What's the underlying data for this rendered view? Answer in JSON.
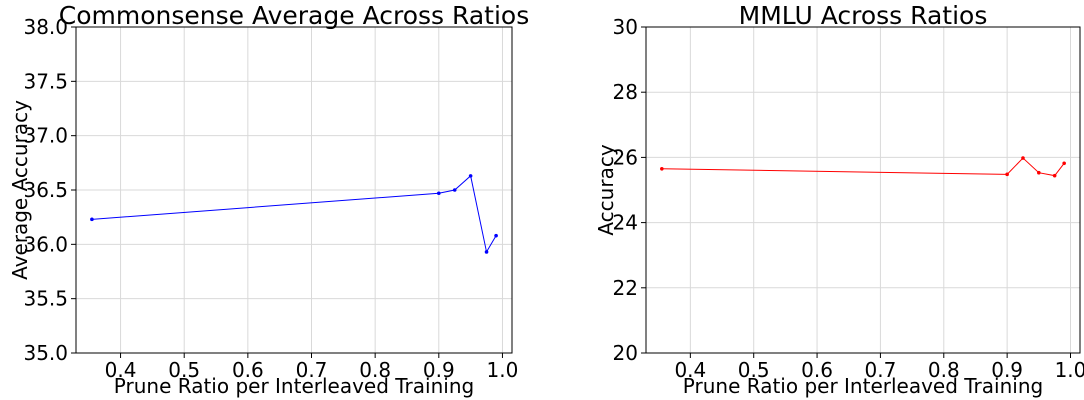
{
  "chart_data": [
    {
      "type": "line",
      "title": "Commonsense Average Across Ratios",
      "xlabel": "Prune Ratio per Interleaved Training",
      "ylabel": "Average Accuracy",
      "xlim": [
        0.33,
        1.015
      ],
      "ylim": [
        35.0,
        38.0
      ],
      "xticks": [
        "0.4",
        "0.5",
        "0.6",
        "0.7",
        "0.8",
        "0.9",
        "1.0"
      ],
      "yticks": [
        "35.0",
        "35.5",
        "36.0",
        "36.5",
        "37.0",
        "37.5",
        "38.0"
      ],
      "grid": true,
      "series": [
        {
          "color": "#0000ff",
          "x": [
            0.355,
            0.9,
            0.925,
            0.95,
            0.975,
            0.99
          ],
          "y": [
            36.23,
            36.47,
            36.5,
            36.63,
            35.93,
            36.08
          ]
        }
      ]
    },
    {
      "type": "line",
      "title": "MMLU Across Ratios",
      "xlabel": "Prune Ratio per Interleaved Training",
      "ylabel": "Accuracy",
      "xlim": [
        0.33,
        1.015
      ],
      "ylim": [
        20,
        30
      ],
      "xticks": [
        "0.4",
        "0.5",
        "0.6",
        "0.7",
        "0.8",
        "0.9",
        "1.0"
      ],
      "yticks": [
        "20",
        "22",
        "24",
        "26",
        "28",
        "30"
      ],
      "grid": true,
      "series": [
        {
          "color": "#ff0000",
          "x": [
            0.355,
            0.9,
            0.925,
            0.95,
            0.975,
            0.99
          ],
          "y": [
            25.65,
            25.48,
            25.98,
            25.53,
            25.44,
            25.82
          ]
        }
      ]
    }
  ]
}
